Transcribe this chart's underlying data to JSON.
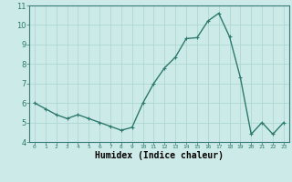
{
  "x": [
    0,
    1,
    2,
    3,
    4,
    5,
    6,
    7,
    8,
    9,
    10,
    11,
    12,
    13,
    14,
    15,
    16,
    17,
    18,
    19,
    20,
    21,
    22,
    23
  ],
  "y": [
    6.0,
    5.7,
    5.4,
    5.2,
    5.4,
    5.2,
    5.0,
    4.8,
    4.6,
    4.75,
    6.0,
    7.0,
    7.8,
    8.35,
    9.3,
    9.35,
    10.2,
    10.6,
    9.4,
    7.3,
    4.4,
    5.0,
    4.4,
    5.0
  ],
  "line_color": "#2d7a6e",
  "marker": "+",
  "marker_size": 3,
  "linewidth": 1.0,
  "xlabel": "Humidex (Indice chaleur)",
  "xlabel_fontsize": 7,
  "ylim": [
    4,
    11
  ],
  "xlim": [
    -0.5,
    23.5
  ],
  "yticks": [
    4,
    5,
    6,
    7,
    8,
    9,
    10,
    11
  ],
  "xticks": [
    0,
    1,
    2,
    3,
    4,
    5,
    6,
    7,
    8,
    9,
    10,
    11,
    12,
    13,
    14,
    15,
    16,
    17,
    18,
    19,
    20,
    21,
    22,
    23
  ],
  "xtick_fontsize": 4.5,
  "ytick_fontsize": 6,
  "bg_color": "#cceae8",
  "grid_color": "#aad4d2",
  "title": ""
}
